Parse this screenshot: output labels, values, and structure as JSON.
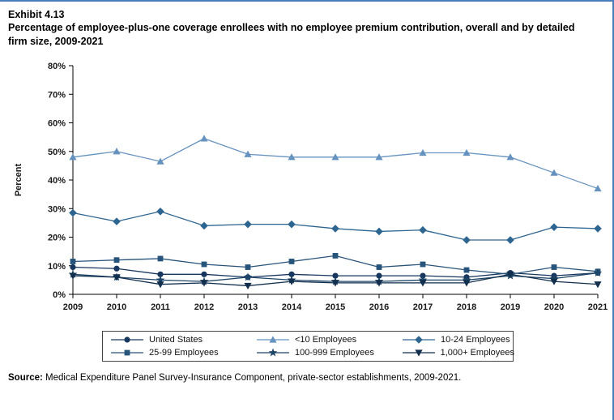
{
  "page": {
    "exhibit": "Exhibit 4.13",
    "title": "Percentage of employee-plus-one coverage enrollees with no employee premium contribution, overall and by detailed firm size, 2009-2021",
    "source_label": "Source:",
    "source_text": " Medical Expenditure Panel Survey-Insurance Component, private-sector establishments, 2009-2021.",
    "border_color": "#4a7ebb"
  },
  "chart_data": {
    "type": "line",
    "title": "Percentage of employee-plus-one coverage enrollees with no employee premium contribution, overall and by detailed firm size, 2009-2021",
    "x": [
      2009,
      2010,
      2011,
      2012,
      2013,
      2014,
      2015,
      2016,
      2017,
      2018,
      2019,
      2020,
      2021
    ],
    "xlabel": "",
    "ylabel": "Percent",
    "ylim": [
      0,
      80
    ],
    "yticks": [
      0,
      10,
      20,
      30,
      40,
      50,
      60,
      70,
      80
    ],
    "grid": false,
    "legend_position": "bottom",
    "series": [
      {
        "name": "United States",
        "marker": "circle",
        "color": "#17375e",
        "values": [
          9.5,
          9,
          7,
          7,
          6,
          7,
          6.5,
          6.5,
          6.5,
          6,
          7.5,
          6.5,
          7.5
        ]
      },
      {
        "name": "<10 Employees",
        "marker": "triangle-up",
        "color": "#6592bf",
        "values": [
          48,
          50,
          46.5,
          54.5,
          49,
          48,
          48,
          48,
          49.5,
          49.5,
          48,
          42.5,
          37
        ]
      },
      {
        "name": "10-24 Employees",
        "marker": "diamond",
        "color": "#2d6591",
        "values": [
          28.5,
          25.5,
          29,
          24,
          24.5,
          24.5,
          23,
          22,
          22.5,
          19,
          19,
          23.5,
          23
        ]
      },
      {
        "name": "25-99 Employees",
        "marker": "square",
        "color": "#27547b",
        "values": [
          11.5,
          12,
          12.5,
          10.5,
          9.5,
          11.5,
          13.5,
          9.5,
          10.5,
          8.5,
          7,
          9.5,
          8
        ]
      },
      {
        "name": "100-999 Employees",
        "marker": "star",
        "color": "#1d4568",
        "values": [
          7,
          6,
          5,
          4.5,
          6,
          5,
          4.5,
          4.5,
          5,
          5,
          6.5,
          5.5,
          7.5
        ]
      },
      {
        "name": "1,000+ Employees",
        "marker": "triangle-down",
        "color": "#122f4e",
        "values": [
          6.5,
          6,
          3.5,
          4,
          3,
          4.5,
          4,
          4,
          4,
          4,
          7,
          4.5,
          3.5
        ]
      }
    ]
  }
}
